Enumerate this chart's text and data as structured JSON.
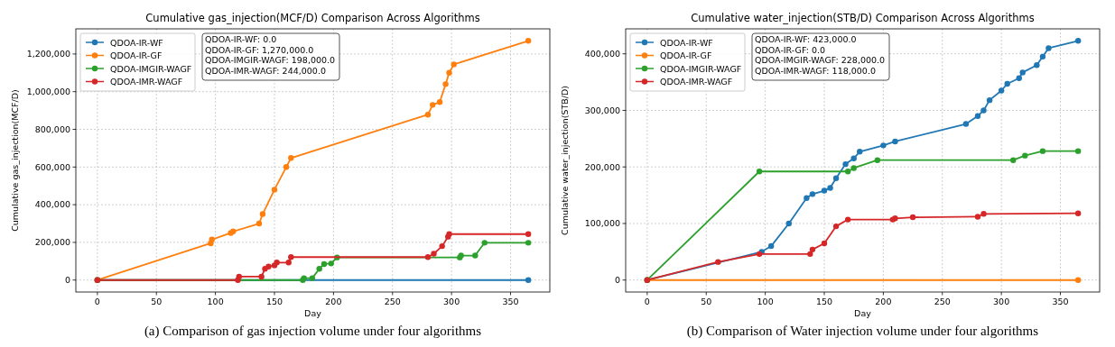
{
  "chart_data": [
    {
      "type": "line",
      "title": "Cumulative gas_injection(MCF/D) Comparison Across Algorithms",
      "xlabel": "Day",
      "ylabel": "Cumulative gas_injection(MCF/D)",
      "xlim": [
        -18.25,
        383.25
      ],
      "xticks": [
        0,
        50,
        100,
        150,
        200,
        250,
        300,
        350
      ],
      "ylim": [
        -63500,
        1333500
      ],
      "yticks": [
        {
          "value": 0,
          "label": "0"
        },
        {
          "value": 200000,
          "label": "200,000"
        },
        {
          "value": 400000,
          "label": "400,000"
        },
        {
          "value": 600000,
          "label": "600,000"
        },
        {
          "value": 800000,
          "label": "800,000"
        },
        {
          "value": 1000000,
          "label": "1,000,000"
        },
        {
          "value": 1200000,
          "label": "1,200,000"
        }
      ],
      "grid": true,
      "legend": "top left",
      "marker": "circle",
      "line_style": "solid",
      "annotations": [
        "QDOA-IR-WF: 0.0",
        "QDOA-IR-GF: 1,270,000.0",
        "QDOA-IMGIR-WAGF: 198,000.0",
        "QDOA-IMR-WAGF: 244,000.0",
        "(a) Comparison of gas injection volume under four algorithms"
      ],
      "series": [
        {
          "name": "QDOA-IR-WF",
          "color": "#1f77b4",
          "x": [
            0,
            365
          ],
          "values": [
            0,
            0
          ]
        },
        {
          "name": "QDOA-IR-GF",
          "color": "#ff7f0e",
          "x": [
            0,
            96,
            97,
            113,
            115,
            137,
            140,
            150,
            160,
            164,
            280,
            284,
            290,
            295,
            298,
            302,
            365
          ],
          "values": [
            0,
            195000,
            215000,
            250000,
            258000,
            300000,
            350000,
            480000,
            600000,
            648000,
            878000,
            930000,
            945000,
            1040000,
            1100000,
            1145000,
            1270000
          ]
        },
        {
          "name": "QDOA-IMGIR-WAGF",
          "color": "#2ca02c",
          "x": [
            0,
            174,
            175,
            182,
            188,
            192,
            198,
            203,
            307,
            308,
            320,
            328,
            365
          ],
          "values": [
            0,
            0,
            10000,
            10000,
            60000,
            85000,
            88000,
            120000,
            120000,
            130000,
            130000,
            198000,
            198000
          ]
        },
        {
          "name": "QDOA-IMR-WAGF",
          "color": "#d62728",
          "x": [
            0,
            119,
            120,
            139,
            142,
            145,
            150,
            152,
            162,
            164,
            280,
            285,
            292,
            297,
            298,
            365
          ],
          "values": [
            0,
            0,
            18000,
            18000,
            60000,
            72000,
            78000,
            93000,
            93000,
            122000,
            122000,
            140000,
            180000,
            230000,
            244000,
            244000
          ]
        }
      ]
    },
    {
      "type": "line",
      "title": "Cumulative water_injection(STB/D) Comparison Across Algorithms",
      "xlabel": "Day",
      "ylabel": "Cumulative water_injection(STB/D)",
      "xlim": [
        -18.25,
        383.25
      ],
      "xticks": [
        0,
        50,
        100,
        150,
        200,
        250,
        300,
        350
      ],
      "ylim": [
        -21150,
        444150
      ],
      "yticks": [
        {
          "value": 0,
          "label": "0"
        },
        {
          "value": 100000,
          "label": "100,000"
        },
        {
          "value": 200000,
          "label": "200,000"
        },
        {
          "value": 300000,
          "label": "300,000"
        },
        {
          "value": 400000,
          "label": "400,000"
        }
      ],
      "grid": true,
      "legend": "top left",
      "marker": "circle",
      "line_style": "solid",
      "annotations": [
        "QDOA-IR-WF: 423,000.0",
        "QDOA-IR-GF: 0.0",
        "QDOA-IMGIR-WAGF: 228,000.0",
        "QDOA-IMR-WAGF: 118,000.0",
        "(b) Comparison of Water injection volume under four algorithms"
      ],
      "series": [
        {
          "name": "QDOA-IR-WF",
          "color": "#1f77b4",
          "x": [
            0,
            97,
            105,
            120,
            135,
            140,
            150,
            155,
            160,
            168,
            175,
            180,
            200,
            210,
            270,
            280,
            285,
            290,
            300,
            305,
            315,
            318,
            330,
            335,
            340,
            365
          ],
          "values": [
            0,
            50000,
            60000,
            100000,
            145000,
            152000,
            158000,
            163000,
            180000,
            205000,
            215000,
            227000,
            238000,
            245000,
            276000,
            290000,
            300000,
            318000,
            335000,
            347000,
            357000,
            367000,
            380000,
            395000,
            410000,
            423000
          ]
        },
        {
          "name": "QDOA-IR-GF",
          "color": "#ff7f0e",
          "x": [
            0,
            365
          ],
          "values": [
            0,
            0
          ]
        },
        {
          "name": "QDOA-IMGIR-WAGF",
          "color": "#2ca02c",
          "x": [
            0,
            95,
            170,
            175,
            195,
            310,
            320,
            335,
            365
          ],
          "values": [
            0,
            192000,
            192000,
            198000,
            212000,
            212000,
            220000,
            228000,
            228000
          ]
        },
        {
          "name": "QDOA-IMR-WAGF",
          "color": "#d62728",
          "x": [
            0,
            60,
            95,
            138,
            140,
            150,
            160,
            170,
            208,
            210,
            225,
            280,
            285,
            365
          ],
          "values": [
            0,
            32000,
            46000,
            46000,
            54000,
            65000,
            95000,
            107000,
            107000,
            109000,
            111000,
            112000,
            117000,
            118000
          ]
        }
      ]
    }
  ]
}
